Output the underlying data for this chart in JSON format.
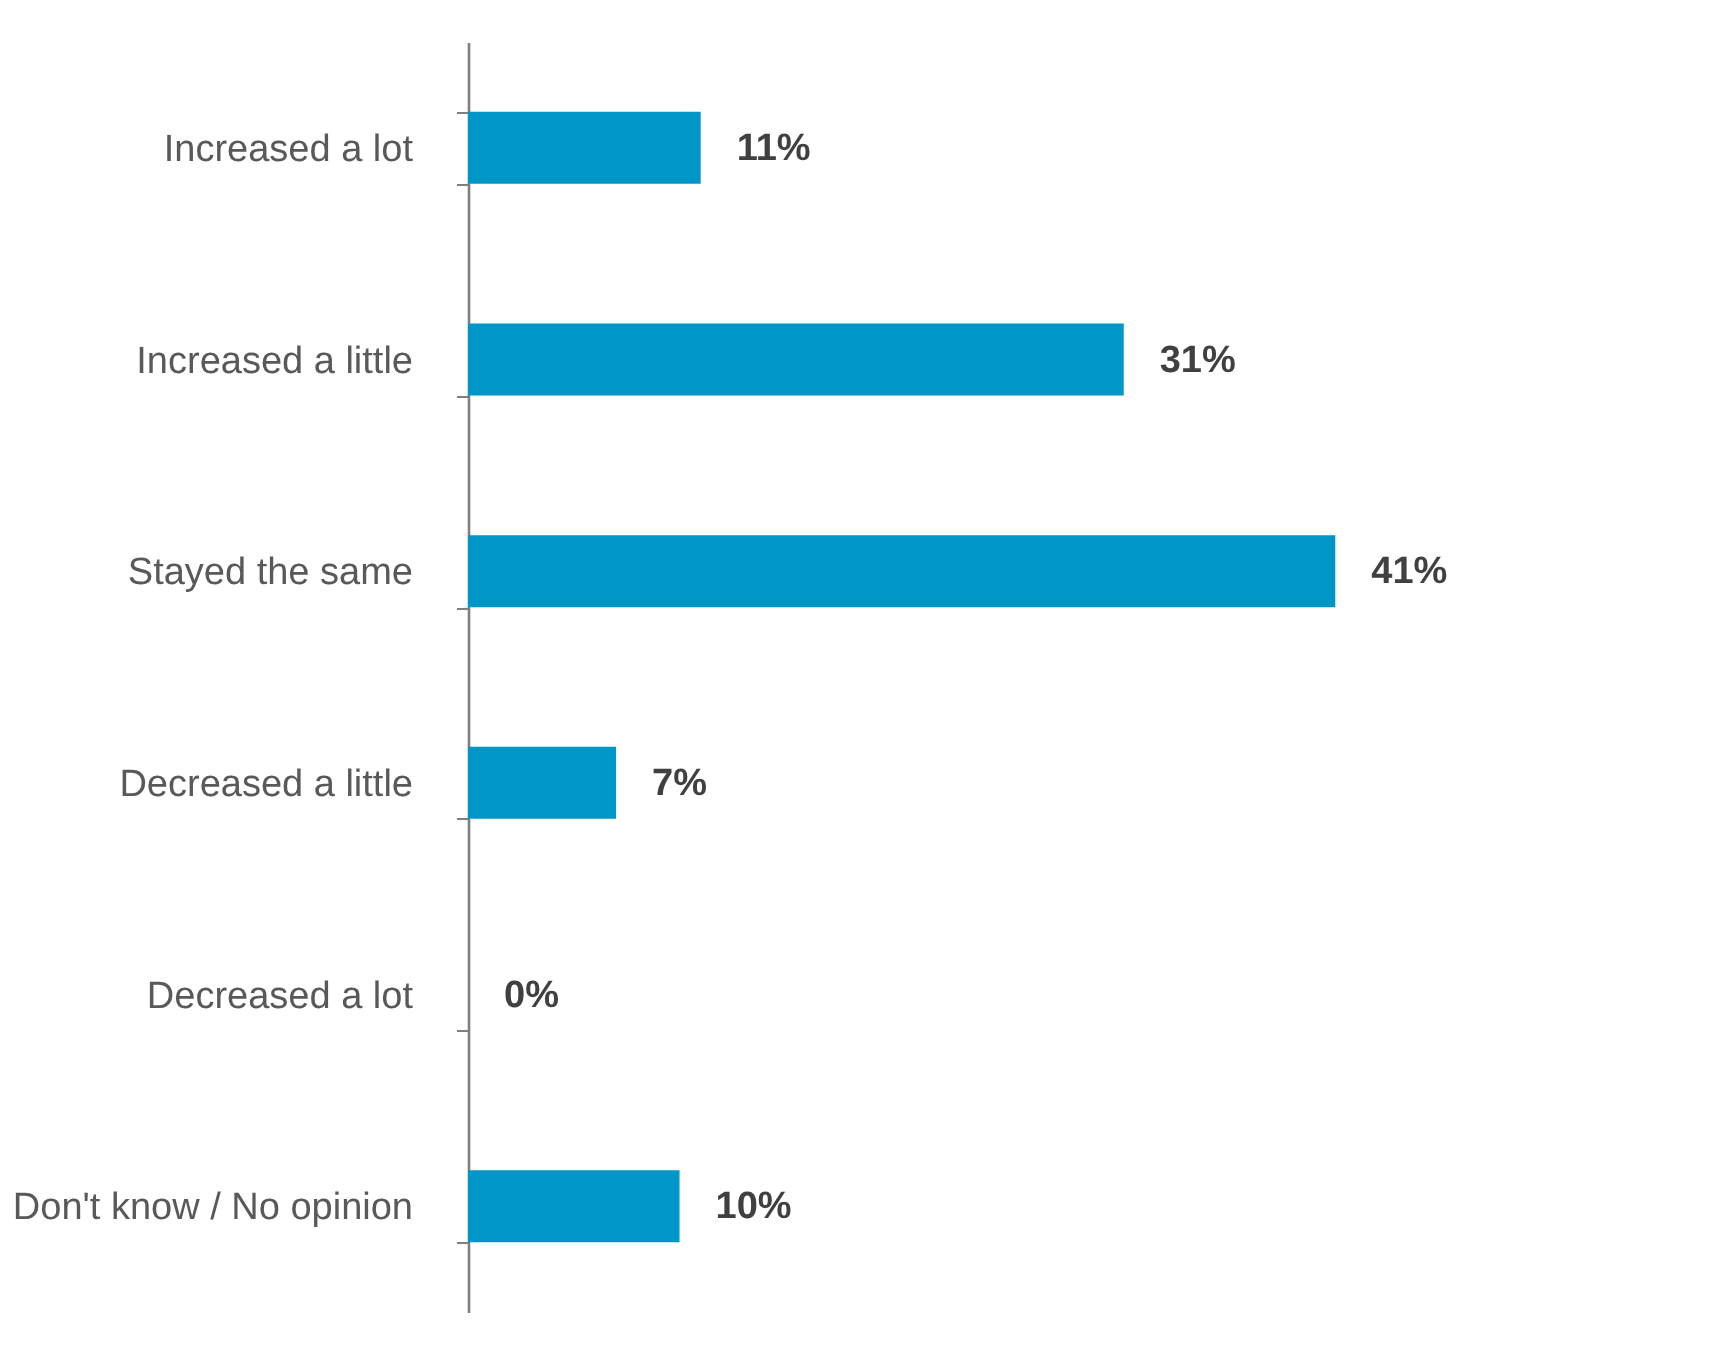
{
  "chart_data": {
    "type": "bar",
    "orientation": "horizontal",
    "categories": [
      "Increased a lot",
      "Increased a little",
      "Stayed the same",
      "Decreased a little",
      "Decreased a lot",
      "Don't know / No opinion"
    ],
    "values": [
      11,
      31,
      41,
      7,
      0,
      10
    ],
    "value_labels": [
      "11%",
      "31%",
      "41%",
      "7%",
      "0%",
      "10%"
    ],
    "color": "#0096c8",
    "grid": false
  }
}
